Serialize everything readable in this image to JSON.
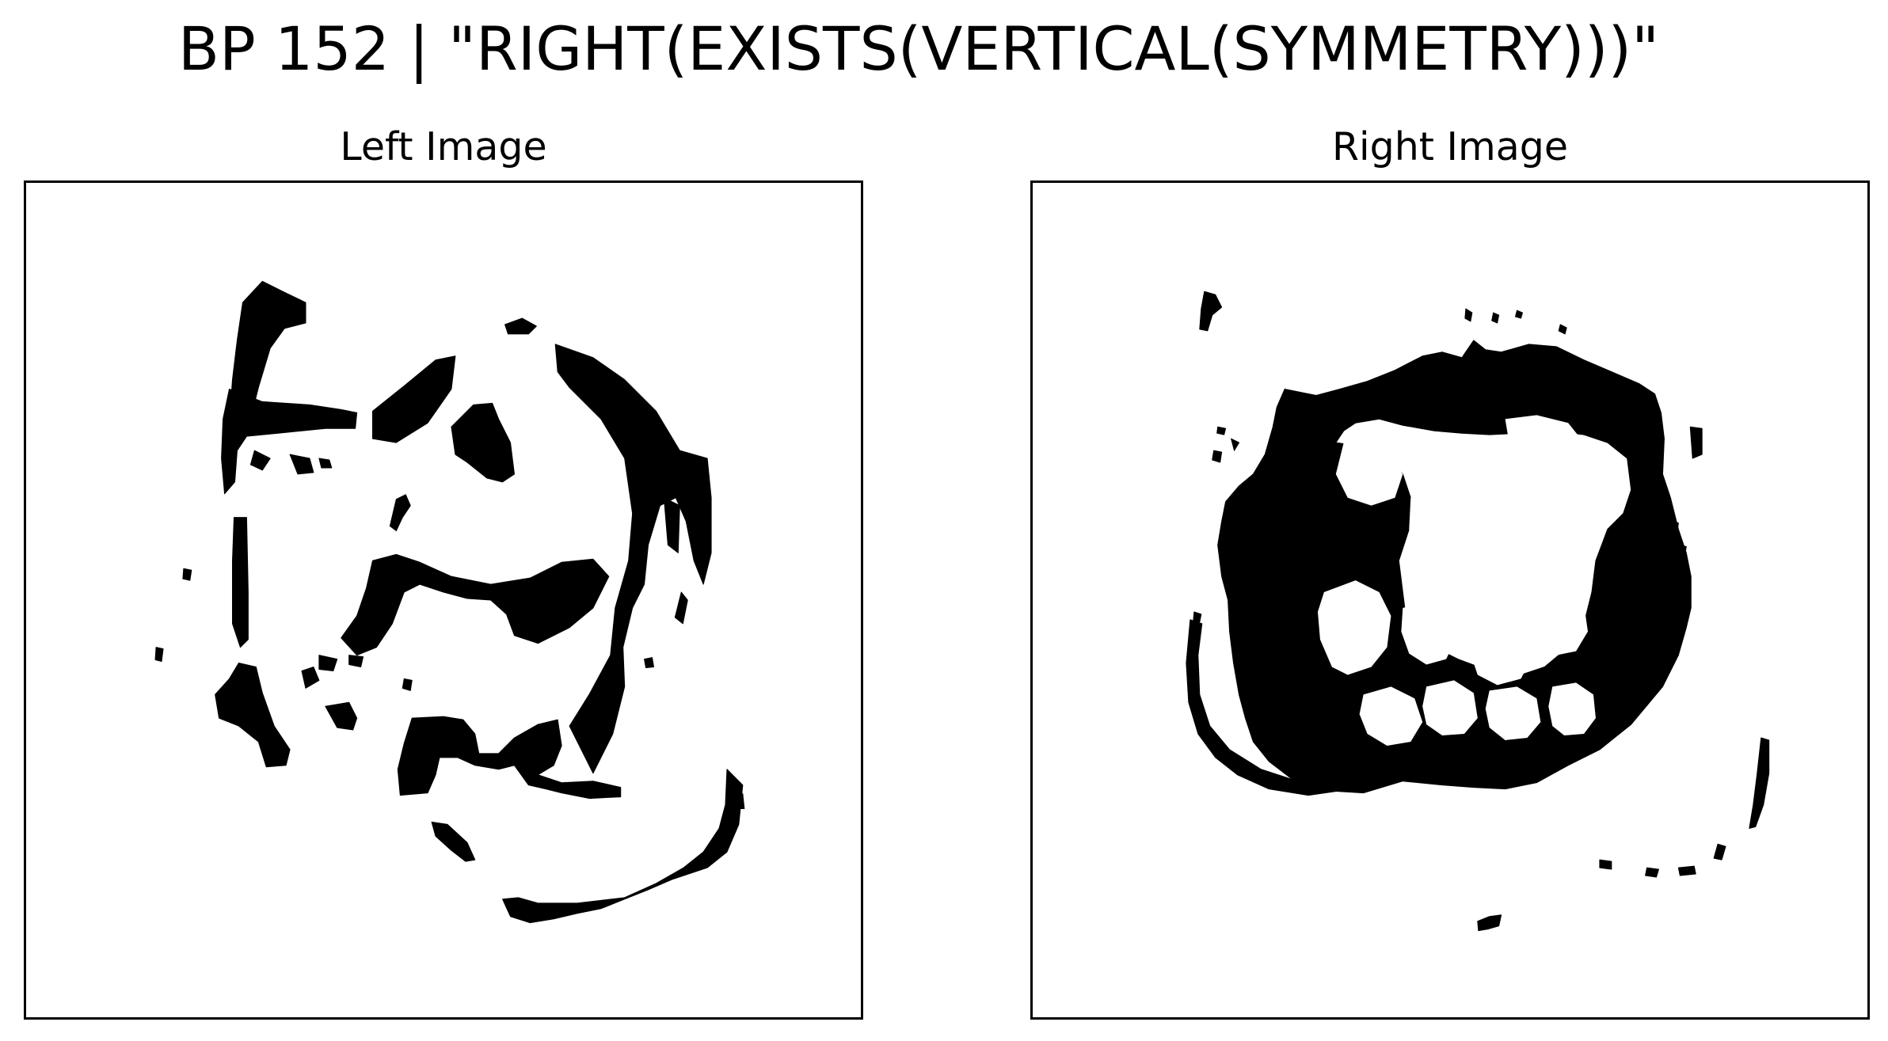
{
  "figure": {
    "title": "BP 152 | \"RIGHT(EXISTS(VERTICAL(SYMMETRY)))\""
  },
  "panels": [
    {
      "id": "left",
      "title": "Left Image",
      "ink_color": "#000000"
    },
    {
      "id": "right",
      "title": "Right Image",
      "ink_color": "#000000"
    }
  ],
  "colors": {
    "background": "#ffffff",
    "ink": "#000000",
    "frame": "#000000"
  }
}
